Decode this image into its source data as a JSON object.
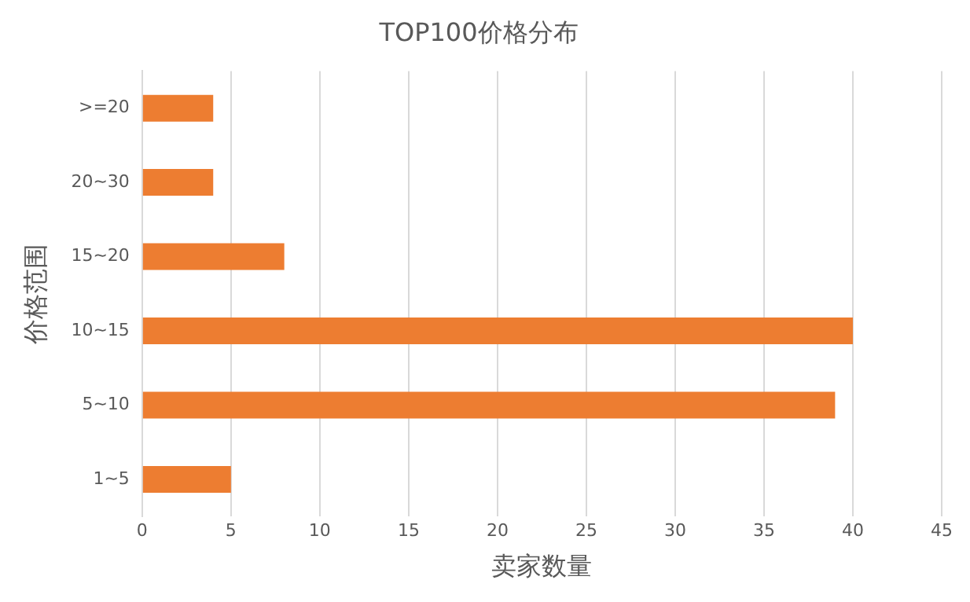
{
  "chart_data": {
    "type": "bar",
    "orientation": "horizontal",
    "title": "TOP100价格分布",
    "xlabel": "卖家数量",
    "ylabel": "价格范围",
    "categories": [
      ">=20",
      "20~30",
      "15~20",
      "10~15",
      "5~10",
      "1~5"
    ],
    "values": [
      4,
      4,
      8,
      40,
      39,
      5
    ],
    "color": "#ed7d31",
    "xlim": [
      0,
      45
    ],
    "xticks": [
      0,
      5,
      10,
      15,
      20,
      25,
      30,
      35,
      40,
      45
    ],
    "grid": "x",
    "legend": false
  }
}
